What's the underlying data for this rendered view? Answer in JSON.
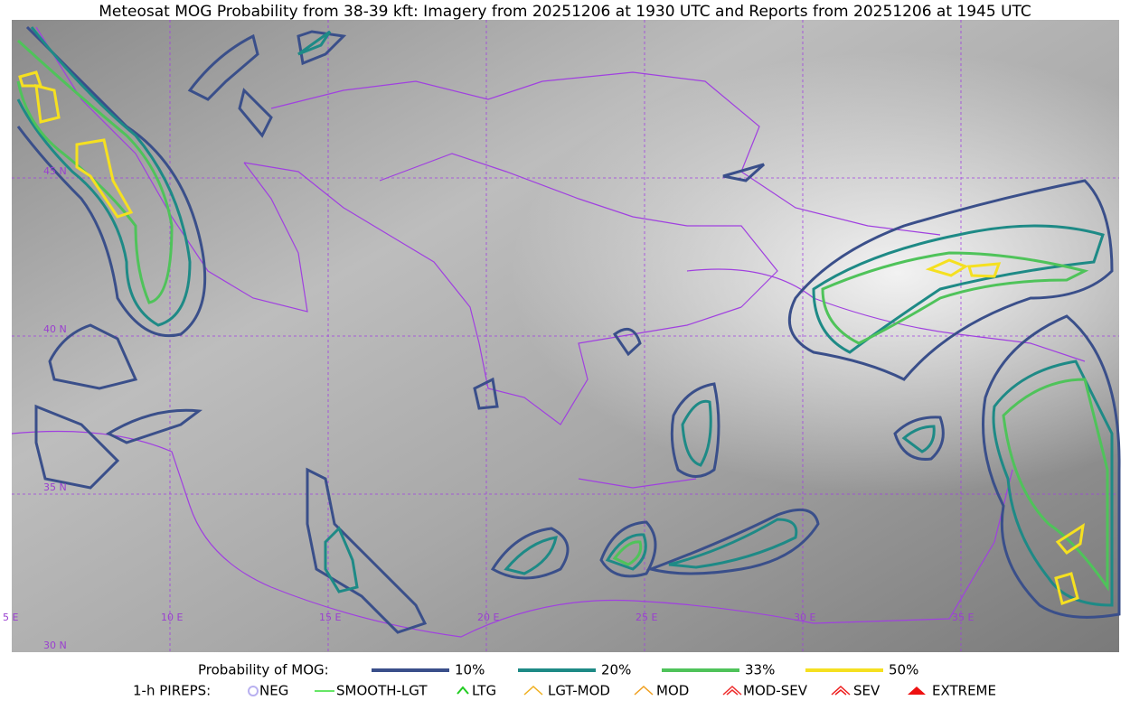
{
  "header": {
    "title": "Meteosat MOG Probability from 38-39 kft: Imagery from 20251206 at 1930 UTC and Reports from 20251206 at 1945 UTC"
  },
  "map": {
    "lon_labels": [
      "5 E",
      "10 E",
      "15 E",
      "20 E",
      "25 E",
      "30 E",
      "35 E"
    ],
    "lat_labels": [
      "45 N",
      "40 N",
      "35 N",
      "30 N"
    ]
  },
  "legend": {
    "title": "Probability of MOG:",
    "items": [
      {
        "label": "10%",
        "color": "#3a4f8a"
      },
      {
        "label": "20%",
        "color": "#1e8a86"
      },
      {
        "label": "33%",
        "color": "#4fc35a"
      },
      {
        "label": "50%",
        "color": "#f5e020"
      }
    ]
  },
  "pireps": {
    "title": "1-h PIREPS:",
    "items": [
      {
        "label": "NEG",
        "color": "#b8b0f0"
      },
      {
        "label": "SMOOTH-LGT",
        "color": "#33dd33"
      },
      {
        "label": "LTG",
        "color": "#22cc22"
      },
      {
        "label": "LGT-MOD",
        "color": "#f0b020"
      },
      {
        "label": "MOD",
        "color": "#f0a020"
      },
      {
        "label": "MOD-SEV",
        "color": "#ee3030"
      },
      {
        "label": "SEV",
        "color": "#ee2020"
      },
      {
        "label": "EXTREME",
        "color": "#ee1010"
      }
    ]
  }
}
